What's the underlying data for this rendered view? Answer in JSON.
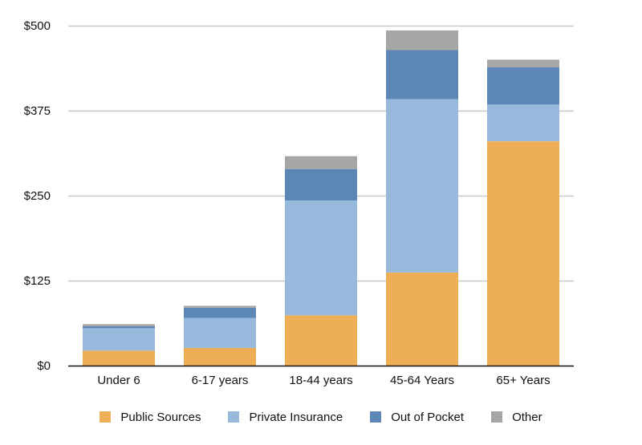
{
  "chart_data": {
    "type": "bar",
    "stacked": true,
    "title": "",
    "xlabel": "",
    "ylabel": "",
    "categories": [
      "Under 6",
      "6-17 years",
      "18-44 years",
      "45-64 Years",
      "65+ Years"
    ],
    "series": [
      {
        "name": "Public Sources",
        "color": "#EDAE55",
        "values": [
          22,
          26,
          74,
          137,
          330
        ]
      },
      {
        "name": "Private Insurance",
        "color": "#96B9DC",
        "values": [
          33,
          44,
          169,
          255,
          54
        ]
      },
      {
        "name": "Out of Pocket",
        "color": "#5C86B6",
        "values": [
          3,
          15,
          46,
          72,
          55
        ]
      },
      {
        "name": "Other",
        "color": "#A6A6A6",
        "values": [
          3,
          3,
          19,
          29,
          11
        ]
      }
    ],
    "ylim": [
      0,
      500
    ],
    "y_ticks": [
      {
        "value": 0,
        "label": "$0"
      },
      {
        "value": 125,
        "label": "$125"
      },
      {
        "value": 250,
        "label": "$250"
      },
      {
        "value": 375,
        "label": "$375"
      },
      {
        "value": 500,
        "label": "$500"
      }
    ],
    "grid": true,
    "legend_position": "bottom"
  }
}
